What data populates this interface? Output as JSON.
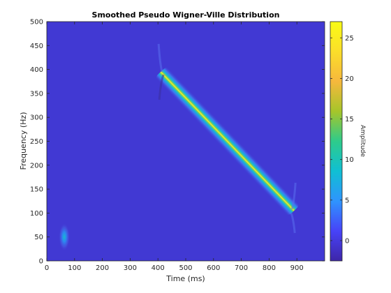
{
  "chart_data": {
    "type": "heatmap",
    "title": "Smoothed Pseudo Wigner-Ville Distribution",
    "xlabel": "Time (ms)",
    "ylabel": "Frequency (Hz)",
    "xlim": [
      0,
      1000
    ],
    "ylim": [
      0,
      500
    ],
    "xticks": [
      0,
      100,
      200,
      300,
      400,
      500,
      600,
      700,
      800,
      900
    ],
    "yticks": [
      0,
      50,
      100,
      150,
      200,
      250,
      300,
      350,
      400,
      450,
      500
    ],
    "colorbar": {
      "label": "Amplitude",
      "range": [
        -2.5,
        27
      ],
      "ticks": [
        0,
        5,
        10,
        15,
        20,
        25
      ],
      "colormap": "parula",
      "colors": [
        "#3e26a8",
        "#4743f8",
        "#2f94fe",
        "#10bfd3",
        "#2ecb8b",
        "#a6c52a",
        "#f6b83d",
        "#fbde2a",
        "#f9fb15"
      ]
    },
    "background_value": 0,
    "components": [
      {
        "kind": "chirp",
        "t_start": 410,
        "t_end": 890,
        "f_start": 395,
        "f_end": 105,
        "peak_amplitude": 27
      },
      {
        "kind": "blob",
        "t": 63,
        "f": 50,
        "peak_amplitude": 10
      }
    ]
  }
}
